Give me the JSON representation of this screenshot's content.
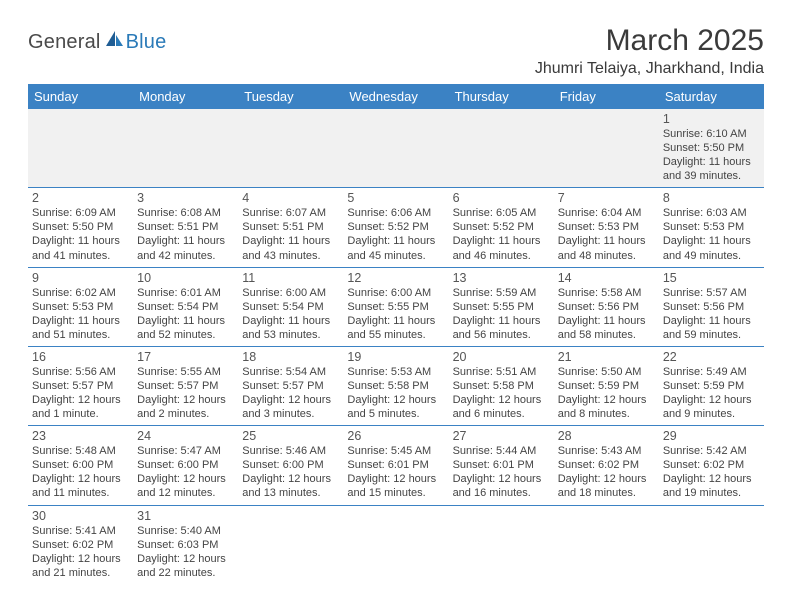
{
  "logo": {
    "general": "General",
    "blue": "Blue"
  },
  "title": "March 2025",
  "location": "Jhumri Telaiya, Jharkhand, India",
  "colors": {
    "header_bg": "#3b82c4",
    "header_text": "#ffffff",
    "border": "#3b82c4",
    "firstrow_bg": "#f1f1f1",
    "text": "#444444",
    "logo_blue": "#2a7ab8",
    "logo_gray": "#4a4a4a"
  },
  "day_headers": [
    "Sunday",
    "Monday",
    "Tuesday",
    "Wednesday",
    "Thursday",
    "Friday",
    "Saturday"
  ],
  "weeks": [
    [
      {
        "n": "",
        "sr": "",
        "ss": "",
        "dl": ""
      },
      {
        "n": "",
        "sr": "",
        "ss": "",
        "dl": ""
      },
      {
        "n": "",
        "sr": "",
        "ss": "",
        "dl": ""
      },
      {
        "n": "",
        "sr": "",
        "ss": "",
        "dl": ""
      },
      {
        "n": "",
        "sr": "",
        "ss": "",
        "dl": ""
      },
      {
        "n": "",
        "sr": "",
        "ss": "",
        "dl": ""
      },
      {
        "n": "1",
        "sr": "Sunrise: 6:10 AM",
        "ss": "Sunset: 5:50 PM",
        "dl": "Daylight: 11 hours and 39 minutes."
      }
    ],
    [
      {
        "n": "2",
        "sr": "Sunrise: 6:09 AM",
        "ss": "Sunset: 5:50 PM",
        "dl": "Daylight: 11 hours and 41 minutes."
      },
      {
        "n": "3",
        "sr": "Sunrise: 6:08 AM",
        "ss": "Sunset: 5:51 PM",
        "dl": "Daylight: 11 hours and 42 minutes."
      },
      {
        "n": "4",
        "sr": "Sunrise: 6:07 AM",
        "ss": "Sunset: 5:51 PM",
        "dl": "Daylight: 11 hours and 43 minutes."
      },
      {
        "n": "5",
        "sr": "Sunrise: 6:06 AM",
        "ss": "Sunset: 5:52 PM",
        "dl": "Daylight: 11 hours and 45 minutes."
      },
      {
        "n": "6",
        "sr": "Sunrise: 6:05 AM",
        "ss": "Sunset: 5:52 PM",
        "dl": "Daylight: 11 hours and 46 minutes."
      },
      {
        "n": "7",
        "sr": "Sunrise: 6:04 AM",
        "ss": "Sunset: 5:53 PM",
        "dl": "Daylight: 11 hours and 48 minutes."
      },
      {
        "n": "8",
        "sr": "Sunrise: 6:03 AM",
        "ss": "Sunset: 5:53 PM",
        "dl": "Daylight: 11 hours and 49 minutes."
      }
    ],
    [
      {
        "n": "9",
        "sr": "Sunrise: 6:02 AM",
        "ss": "Sunset: 5:53 PM",
        "dl": "Daylight: 11 hours and 51 minutes."
      },
      {
        "n": "10",
        "sr": "Sunrise: 6:01 AM",
        "ss": "Sunset: 5:54 PM",
        "dl": "Daylight: 11 hours and 52 minutes."
      },
      {
        "n": "11",
        "sr": "Sunrise: 6:00 AM",
        "ss": "Sunset: 5:54 PM",
        "dl": "Daylight: 11 hours and 53 minutes."
      },
      {
        "n": "12",
        "sr": "Sunrise: 6:00 AM",
        "ss": "Sunset: 5:55 PM",
        "dl": "Daylight: 11 hours and 55 minutes."
      },
      {
        "n": "13",
        "sr": "Sunrise: 5:59 AM",
        "ss": "Sunset: 5:55 PM",
        "dl": "Daylight: 11 hours and 56 minutes."
      },
      {
        "n": "14",
        "sr": "Sunrise: 5:58 AM",
        "ss": "Sunset: 5:56 PM",
        "dl": "Daylight: 11 hours and 58 minutes."
      },
      {
        "n": "15",
        "sr": "Sunrise: 5:57 AM",
        "ss": "Sunset: 5:56 PM",
        "dl": "Daylight: 11 hours and 59 minutes."
      }
    ],
    [
      {
        "n": "16",
        "sr": "Sunrise: 5:56 AM",
        "ss": "Sunset: 5:57 PM",
        "dl": "Daylight: 12 hours and 1 minute."
      },
      {
        "n": "17",
        "sr": "Sunrise: 5:55 AM",
        "ss": "Sunset: 5:57 PM",
        "dl": "Daylight: 12 hours and 2 minutes."
      },
      {
        "n": "18",
        "sr": "Sunrise: 5:54 AM",
        "ss": "Sunset: 5:57 PM",
        "dl": "Daylight: 12 hours and 3 minutes."
      },
      {
        "n": "19",
        "sr": "Sunrise: 5:53 AM",
        "ss": "Sunset: 5:58 PM",
        "dl": "Daylight: 12 hours and 5 minutes."
      },
      {
        "n": "20",
        "sr": "Sunrise: 5:51 AM",
        "ss": "Sunset: 5:58 PM",
        "dl": "Daylight: 12 hours and 6 minutes."
      },
      {
        "n": "21",
        "sr": "Sunrise: 5:50 AM",
        "ss": "Sunset: 5:59 PM",
        "dl": "Daylight: 12 hours and 8 minutes."
      },
      {
        "n": "22",
        "sr": "Sunrise: 5:49 AM",
        "ss": "Sunset: 5:59 PM",
        "dl": "Daylight: 12 hours and 9 minutes."
      }
    ],
    [
      {
        "n": "23",
        "sr": "Sunrise: 5:48 AM",
        "ss": "Sunset: 6:00 PM",
        "dl": "Daylight: 12 hours and 11 minutes."
      },
      {
        "n": "24",
        "sr": "Sunrise: 5:47 AM",
        "ss": "Sunset: 6:00 PM",
        "dl": "Daylight: 12 hours and 12 minutes."
      },
      {
        "n": "25",
        "sr": "Sunrise: 5:46 AM",
        "ss": "Sunset: 6:00 PM",
        "dl": "Daylight: 12 hours and 13 minutes."
      },
      {
        "n": "26",
        "sr": "Sunrise: 5:45 AM",
        "ss": "Sunset: 6:01 PM",
        "dl": "Daylight: 12 hours and 15 minutes."
      },
      {
        "n": "27",
        "sr": "Sunrise: 5:44 AM",
        "ss": "Sunset: 6:01 PM",
        "dl": "Daylight: 12 hours and 16 minutes."
      },
      {
        "n": "28",
        "sr": "Sunrise: 5:43 AM",
        "ss": "Sunset: 6:02 PM",
        "dl": "Daylight: 12 hours and 18 minutes."
      },
      {
        "n": "29",
        "sr": "Sunrise: 5:42 AM",
        "ss": "Sunset: 6:02 PM",
        "dl": "Daylight: 12 hours and 19 minutes."
      }
    ],
    [
      {
        "n": "30",
        "sr": "Sunrise: 5:41 AM",
        "ss": "Sunset: 6:02 PM",
        "dl": "Daylight: 12 hours and 21 minutes."
      },
      {
        "n": "31",
        "sr": "Sunrise: 5:40 AM",
        "ss": "Sunset: 6:03 PM",
        "dl": "Daylight: 12 hours and 22 minutes."
      },
      {
        "n": "",
        "sr": "",
        "ss": "",
        "dl": ""
      },
      {
        "n": "",
        "sr": "",
        "ss": "",
        "dl": ""
      },
      {
        "n": "",
        "sr": "",
        "ss": "",
        "dl": ""
      },
      {
        "n": "",
        "sr": "",
        "ss": "",
        "dl": ""
      },
      {
        "n": "",
        "sr": "",
        "ss": "",
        "dl": ""
      }
    ]
  ]
}
